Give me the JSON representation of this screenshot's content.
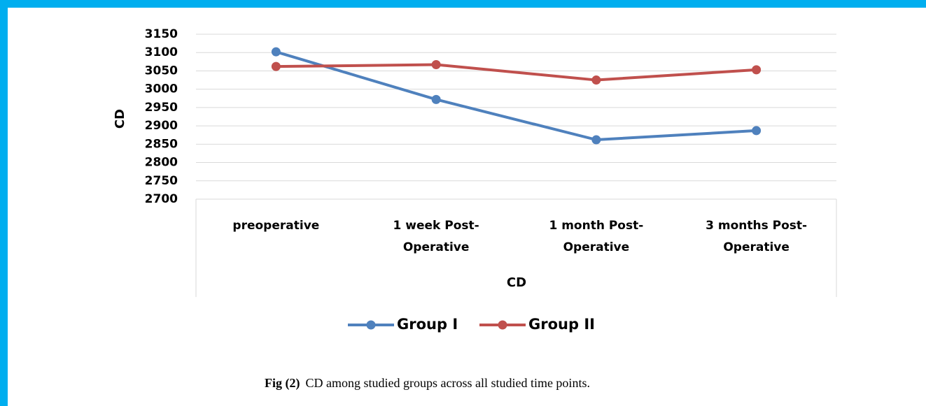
{
  "chart_data": {
    "type": "line",
    "x_label": "CD",
    "y_label": "CD",
    "categories": [
      "preoperative",
      "1 week Post-Operative",
      "1 month Post-Operative",
      "3 months Post-Operative"
    ],
    "series": [
      {
        "name": "Group I",
        "color": "#4f81bd",
        "values": [
          3102,
          2972,
          2862,
          2887
        ]
      },
      {
        "name": "Group II",
        "color": "#c0504d",
        "values": [
          3062,
          3067,
          3025,
          3053
        ]
      }
    ],
    "ylim": [
      2700,
      3150
    ],
    "yticks": [
      2700,
      2750,
      2800,
      2850,
      2900,
      2950,
      3000,
      3050,
      3100,
      3150
    ],
    "grid": true,
    "legend": "bottom",
    "caption": {
      "label": "Fig (2)",
      "text": "CD among studied groups across all studied time points."
    }
  }
}
